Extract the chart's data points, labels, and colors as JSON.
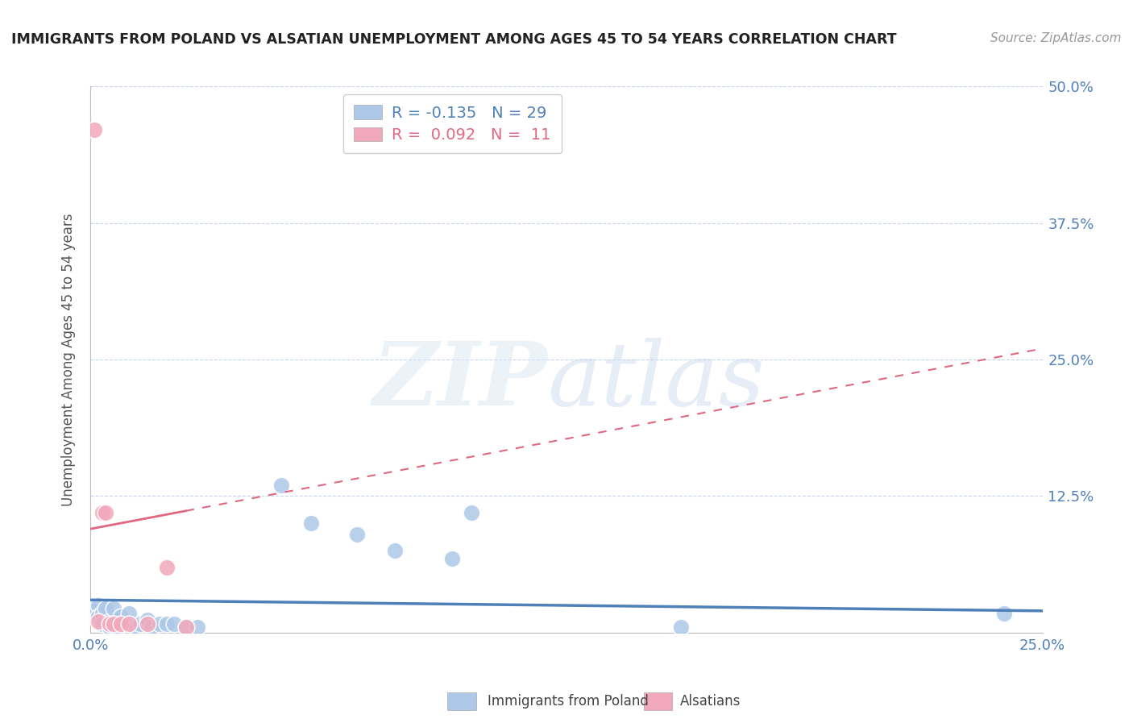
{
  "title": "IMMIGRANTS FROM POLAND VS ALSATIAN UNEMPLOYMENT AMONG AGES 45 TO 54 YEARS CORRELATION CHART",
  "source": "Source: ZipAtlas.com",
  "ylabel": "Unemployment Among Ages 45 to 54 years",
  "xlim": [
    0.0,
    0.25
  ],
  "ylim": [
    0.0,
    0.5
  ],
  "xticks": [
    0.0,
    0.05,
    0.1,
    0.15,
    0.2,
    0.25
  ],
  "yticks": [
    0.0,
    0.125,
    0.25,
    0.375,
    0.5
  ],
  "xticklabels": [
    "0.0%",
    "",
    "",
    "",
    "",
    "25.0%"
  ],
  "yticklabels": [
    "",
    "12.5%",
    "25.0%",
    "37.5%",
    "50.0%"
  ],
  "blue_R": -0.135,
  "blue_N": 29,
  "pink_R": 0.092,
  "pink_N": 11,
  "blue_color": "#adc8e8",
  "pink_color": "#f2a8bc",
  "blue_line_color": "#5080b8",
  "pink_line_color": "#e06880",
  "legend_label_blue": "Immigrants from Poland",
  "legend_label_pink": "Alsatians",
  "blue_x": [
    0.001,
    0.002,
    0.002,
    0.003,
    0.003,
    0.004,
    0.005,
    0.005,
    0.006,
    0.007,
    0.008,
    0.01,
    0.012,
    0.013,
    0.015,
    0.016,
    0.018,
    0.02,
    0.022,
    0.025,
    0.028,
    0.05,
    0.058,
    0.07,
    0.08,
    0.095,
    0.1,
    0.155,
    0.24
  ],
  "blue_y": [
    0.02,
    0.025,
    0.015,
    0.018,
    0.008,
    0.022,
    0.01,
    0.005,
    0.022,
    0.005,
    0.015,
    0.018,
    0.005,
    0.008,
    0.012,
    0.005,
    0.008,
    0.008,
    0.008,
    0.005,
    0.005,
    0.135,
    0.1,
    0.09,
    0.075,
    0.068,
    0.11,
    0.005,
    0.018
  ],
  "pink_x": [
    0.001,
    0.002,
    0.003,
    0.004,
    0.005,
    0.006,
    0.008,
    0.01,
    0.015,
    0.02,
    0.025
  ],
  "pink_y": [
    0.46,
    0.01,
    0.11,
    0.11,
    0.008,
    0.008,
    0.008,
    0.008,
    0.008,
    0.06,
    0.005
  ],
  "blue_trend_x0": 0.0,
  "blue_trend_y0": 0.03,
  "blue_trend_x1": 0.25,
  "blue_trend_y1": 0.02,
  "pink_trend_x0": 0.0,
  "pink_trend_y0": 0.095,
  "pink_trend_x1": 0.25,
  "pink_trend_y1": 0.26
}
